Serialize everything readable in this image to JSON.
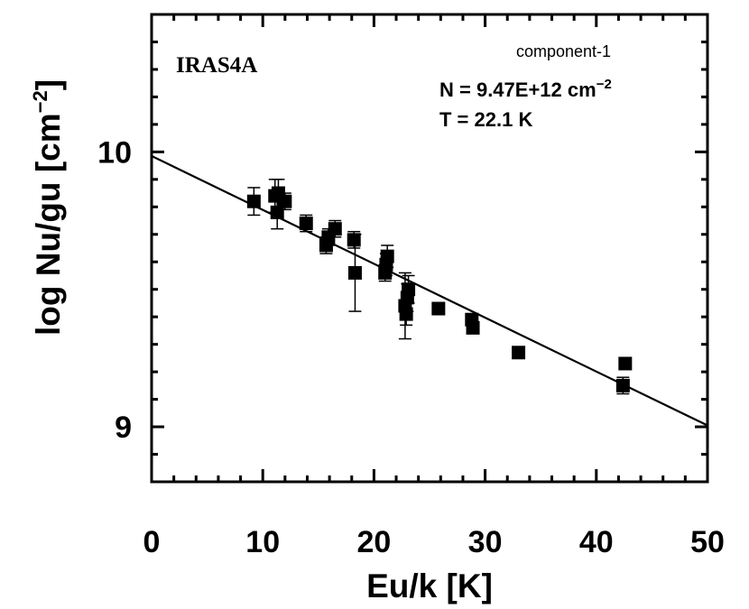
{
  "chart_data": {
    "type": "scatter",
    "title": "",
    "xlabel": "Eu/k [K]",
    "ylabel": {
      "main": "log Nu/gu [cm",
      "sup": "−2",
      "close": "]"
    },
    "xlim": [
      0,
      50
    ],
    "ylim": [
      8.8,
      10.5
    ],
    "x_ticks": [
      0,
      10,
      20,
      30,
      40,
      50
    ],
    "x_tick_labels": [
      "0",
      "10",
      "20",
      "30",
      "40",
      "50"
    ],
    "y_ticks": [
      9,
      10
    ],
    "y_tick_labels": [
      "9",
      "10"
    ],
    "annotations": {
      "source": "IRAS4A",
      "component": "component-1",
      "column_density": {
        "main": "N = 9.47E+12 cm",
        "sup": "−2"
      },
      "temperature": "T = 22.1 K"
    },
    "fit_line": {
      "x": [
        0,
        50
      ],
      "y": [
        9.985,
        9.005
      ]
    },
    "points": [
      {
        "x": 9.2,
        "y": 9.82,
        "err": 0.05
      },
      {
        "x": 11.1,
        "y": 9.84,
        "err": 0.06
      },
      {
        "x": 11.3,
        "y": 9.78,
        "err": 0.06
      },
      {
        "x": 11.4,
        "y": 9.85,
        "err": 0.05
      },
      {
        "x": 12.0,
        "y": 9.82,
        "err": 0.03
      },
      {
        "x": 13.9,
        "y": 9.74,
        "err": 0.03
      },
      {
        "x": 15.7,
        "y": 9.66,
        "err": 0.03
      },
      {
        "x": 15.9,
        "y": 9.69,
        "err": 0.03
      },
      {
        "x": 16.5,
        "y": 9.72,
        "err": 0.03
      },
      {
        "x": 18.2,
        "y": 9.68,
        "err": 0.03
      },
      {
        "x": 18.3,
        "y": 9.56,
        "err": 0.14
      },
      {
        "x": 21.0,
        "y": 9.56,
        "err": 0.03
      },
      {
        "x": 21.1,
        "y": 9.59,
        "err": 0.04
      },
      {
        "x": 21.2,
        "y": 9.62,
        "err": 0.04
      },
      {
        "x": 22.8,
        "y": 9.44,
        "err": 0.12
      },
      {
        "x": 22.9,
        "y": 9.41,
        "err": 0.04
      },
      {
        "x": 23.0,
        "y": 9.47,
        "err": 0.05
      },
      {
        "x": 23.1,
        "y": 9.5,
        "err": 0.05
      },
      {
        "x": 25.8,
        "y": 9.43,
        "err": 0.02
      },
      {
        "x": 28.8,
        "y": 9.39,
        "err": 0.02
      },
      {
        "x": 28.9,
        "y": 9.36,
        "err": 0.02
      },
      {
        "x": 33.0,
        "y": 9.27,
        "err": 0.02
      },
      {
        "x": 42.4,
        "y": 9.15,
        "err": 0.03
      },
      {
        "x": 42.6,
        "y": 9.23,
        "err": 0.02
      }
    ]
  }
}
